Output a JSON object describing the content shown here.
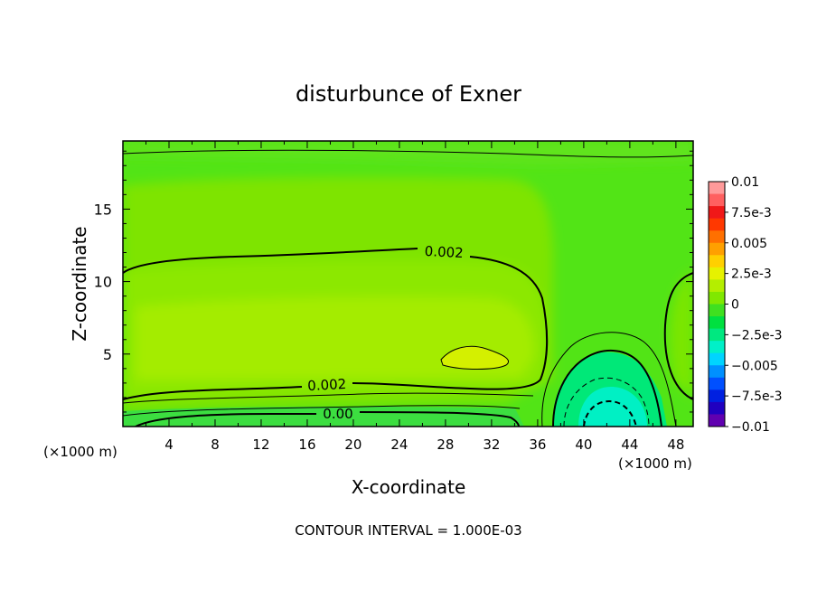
{
  "chart_data": {
    "type": "heatmap",
    "title": "disturbunce of Exner",
    "xlabel": "X-coordinate",
    "ylabel": "Z-coordinate",
    "x_unit_left": "(×1000 m)",
    "x_unit_right": "(×1000 m)",
    "xlim": [
      0,
      49.5
    ],
    "ylim": [
      0,
      19.7
    ],
    "x_ticks": [
      "4",
      "8",
      "12",
      "16",
      "20",
      "24",
      "28",
      "32",
      "36",
      "40",
      "44",
      "48"
    ],
    "x_tick_values": [
      4,
      8,
      12,
      16,
      20,
      24,
      28,
      32,
      36,
      40,
      44,
      48
    ],
    "y_ticks": [
      "5",
      "10",
      "15"
    ],
    "y_tick_values": [
      5,
      10,
      15
    ],
    "contour_interval_text": "CONTOUR INTERVAL = 1.000E-03",
    "contour_labels": [
      "0.002",
      "0.002",
      "0.00"
    ],
    "colorbar": {
      "labels": [
        "0.01",
        "7.5e-3",
        "0.005",
        "2.5e-3",
        "0",
        "−2.5e-3",
        "−0.005",
        "−7.5e-3",
        "−0.01"
      ],
      "levels": [
        0.01,
        0.0075,
        0.005,
        0.0025,
        0,
        -0.0025,
        -0.005,
        -0.0075,
        -0.01
      ],
      "colors": [
        "#ff9a9a",
        "#ff6060",
        "#f01818",
        "#ff3800",
        "#ff7000",
        "#ffa000",
        "#ffd000",
        "#e6f200",
        "#b4ee00",
        "#80e800",
        "#40e020",
        "#00e040",
        "#00e880",
        "#00f0c8",
        "#00d4ff",
        "#0090ff",
        "#0050ff",
        "#0020e0",
        "#2000c0",
        "#6000b0"
      ]
    },
    "field_colors": {
      "background": "#52e416",
      "top_band": "#60e41c",
      "upper_layer": "#8ae600",
      "mid_layer": "#9cea00",
      "core": "#b6ee00",
      "peak": "#d0f000",
      "near_zero": "#3cde3c",
      "negative": "#00e876",
      "negative_core": "#00f0c0"
    },
    "features": [
      {
        "kind": "positive maximum",
        "x": 30.5,
        "z": 4.8,
        "value": 0.003
      },
      {
        "kind": "negative minimum",
        "x": 42.5,
        "z": 0.5,
        "value": -0.003
      }
    ]
  }
}
